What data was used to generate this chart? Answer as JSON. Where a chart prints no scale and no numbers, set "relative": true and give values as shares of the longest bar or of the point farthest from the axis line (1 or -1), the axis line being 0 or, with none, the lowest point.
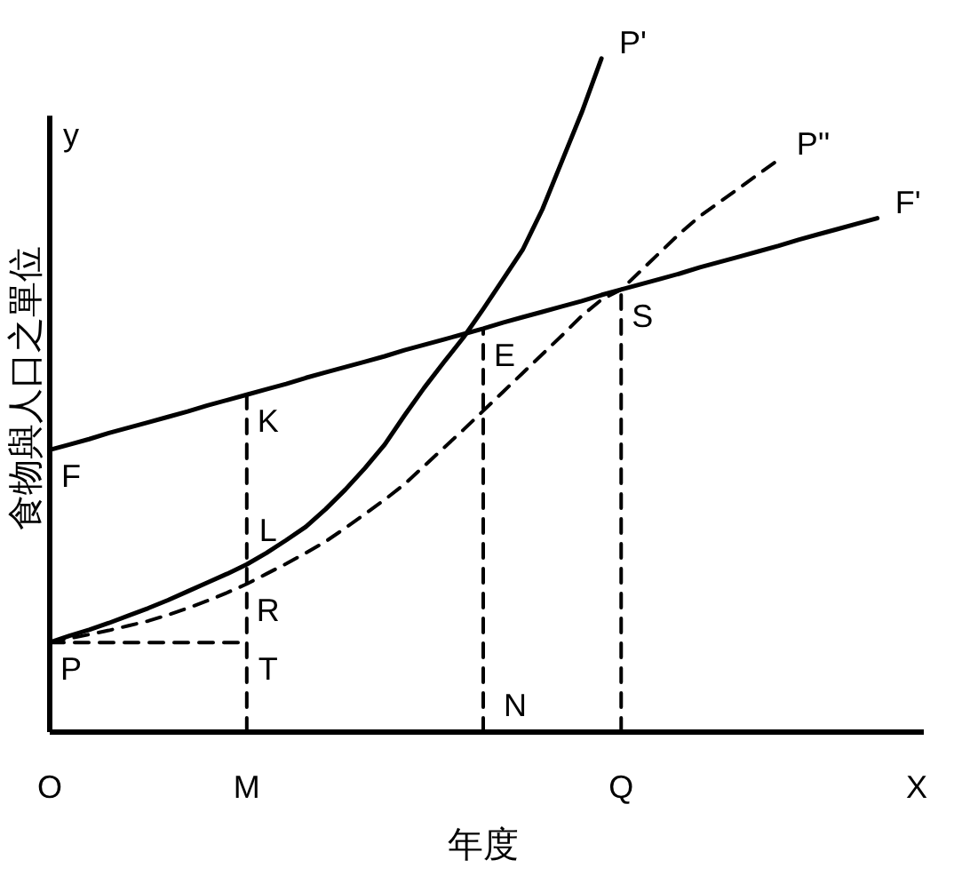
{
  "chart_data": {
    "type": "line",
    "relative": true,
    "xlabel": "年度",
    "ylabel": "食物與人口之單位",
    "legend": false,
    "grid": false,
    "line_style": "solid",
    "categories": [
      "O",
      null,
      null,
      null,
      null,
      null,
      null,
      null,
      null,
      null,
      "M",
      null,
      null,
      null,
      null,
      null,
      null,
      null,
      null,
      null,
      null,
      null,
      null,
      null,
      null,
      null,
      null,
      null,
      null,
      "Q",
      null,
      null,
      null,
      null,
      null,
      null,
      null,
      null,
      null,
      null,
      null,
      null,
      null,
      null,
      "X"
    ],
    "series": [
      {
        "name": "F'",
        "color": "#000000",
        "values": [
          0.419,
          0.427,
          0.435,
          0.444,
          0.452,
          0.46,
          0.468,
          0.476,
          0.485,
          0.493,
          0.501,
          0.509,
          0.517,
          0.526,
          0.534,
          0.542,
          0.55,
          0.558,
          0.567,
          0.575,
          0.583,
          0.591,
          0.599,
          0.608,
          0.616,
          0.624,
          0.632,
          0.64,
          0.649,
          0.657,
          0.665,
          0.673,
          0.681,
          0.69,
          0.698,
          0.706,
          0.714,
          0.722,
          0.731,
          0.739,
          0.747,
          0.755,
          0.763,
          null,
          null
        ]
      },
      {
        "name": "P'",
        "color": "#000000",
        "values": [
          0.133,
          0.143,
          0.152,
          0.162,
          0.173,
          0.184,
          0.196,
          0.209,
          0.222,
          0.235,
          0.249,
          0.266,
          0.285,
          0.305,
          0.331,
          0.36,
          0.392,
          0.427,
          0.47,
          0.511,
          0.549,
          0.586,
          0.628,
          0.672,
          0.716,
          0.776,
          0.848,
          0.92,
          1.0,
          null,
          null,
          null,
          null,
          null,
          null,
          null,
          null,
          null,
          null,
          null,
          null,
          null,
          null,
          null,
          null
        ]
      },
      {
        "name": "P''",
        "color": "#000000",
        "line_style": "dashed",
        "values": [
          0.133,
          0.139,
          0.145,
          0.151,
          0.158,
          0.165,
          0.174,
          0.184,
          0.195,
          0.207,
          0.22,
          0.235,
          0.25,
          0.266,
          0.283,
          0.303,
          0.324,
          0.345,
          0.368,
          0.395,
          0.422,
          0.449,
          0.477,
          0.505,
          0.533,
          0.561,
          0.589,
          0.618,
          0.642,
          0.657,
          0.685,
          0.713,
          0.741,
          0.766,
          0.787,
          0.808,
          0.829,
          0.85,
          null,
          null,
          null,
          null,
          null,
          null,
          null
        ]
      }
    ],
    "ref_lines": [
      {
        "axis": "x",
        "value": "M",
        "line_style": "dashed"
      },
      {
        "axis": "x",
        "value": "Q",
        "line_style": "dashed"
      },
      {
        "axis": "y",
        "value": 0.133,
        "line_style": "dashed"
      }
    ],
    "annotations": [
      {
        "text": "F",
        "x": "O",
        "y": 0.419
      },
      {
        "text": "K",
        "x": "M",
        "y": 0.501
      },
      {
        "text": "E",
        "y": 0.599
      },
      {
        "text": "S",
        "x": "Q",
        "y": 0.657
      },
      {
        "text": "L",
        "x": "M",
        "y": 0.249
      },
      {
        "text": "R",
        "x": "M",
        "y": 0.22
      },
      {
        "text": "T",
        "x": "M",
        "y": 0.133
      },
      {
        "text": "P",
        "x": "O",
        "y": 0.133
      },
      "y",
      "N"
    ]
  }
}
